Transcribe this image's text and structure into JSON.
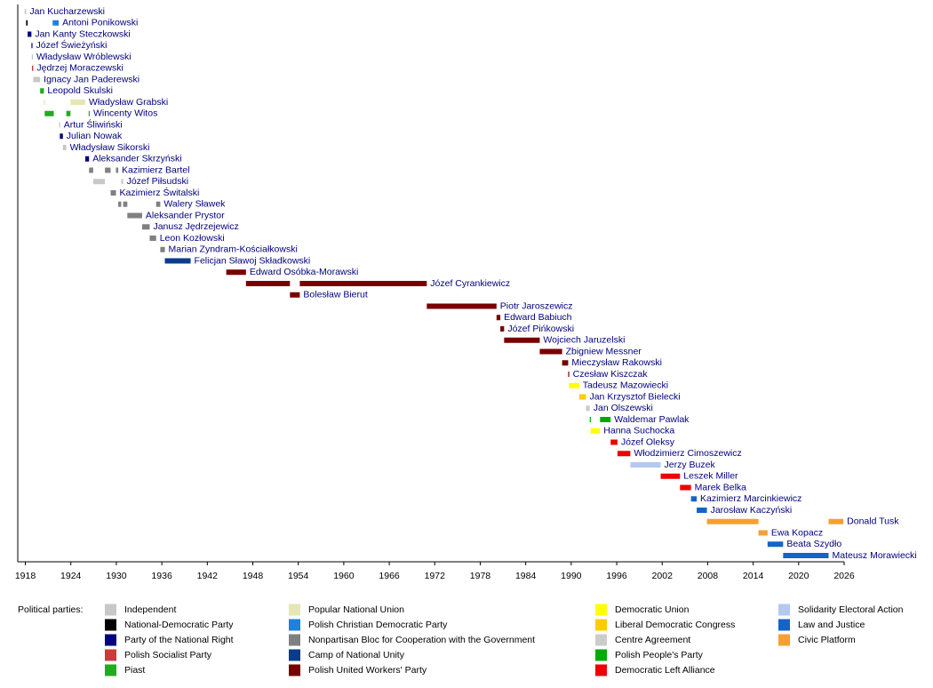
{
  "chart_data": {
    "type": "timeline",
    "xlim": [
      1917,
      2026
    ],
    "xticks": [
      1918,
      1924,
      1930,
      1936,
      1942,
      1948,
      1954,
      1960,
      1966,
      1972,
      1978,
      1984,
      1990,
      1996,
      2002,
      2008,
      2014,
      2020,
      2026
    ],
    "legend_title": "Political parties:",
    "parties": [
      {
        "name": "Independent",
        "color": "#c8c8c8"
      },
      {
        "name": "National-Democratic Party",
        "color": "#000000"
      },
      {
        "name": "Party of the National Right",
        "color": "#00007f"
      },
      {
        "name": "Polish Socialist Party",
        "color": "#c83c3c"
      },
      {
        "name": "Piast",
        "color": "#22aa22"
      },
      {
        "name": "Popular National Union",
        "color": "#e6e6b4"
      },
      {
        "name": "Polish Christian Democratic Party",
        "color": "#1e82dc"
      },
      {
        "name": "Nonpartisan Bloc for Cooperation with the Government",
        "color": "#808080"
      },
      {
        "name": "Camp of National Unity",
        "color": "#0a3c8c"
      },
      {
        "name": "Polish United Workers' Party",
        "color": "#780000"
      },
      {
        "name": "Democratic Union",
        "color": "#ffff00"
      },
      {
        "name": "Liberal Democratic Congress",
        "color": "#ffcc00"
      },
      {
        "name": "Centre Agreement",
        "color": "#cccccc"
      },
      {
        "name": "Polish People's Party",
        "color": "#00aa00"
      },
      {
        "name": "Democratic Left Alliance",
        "color": "#ee0000"
      },
      {
        "name": "Solidarity Electoral Action",
        "color": "#b4c8f0"
      },
      {
        "name": "Law and Justice",
        "color": "#1464c8"
      },
      {
        "name": "Civic Platform",
        "color": "#f5a030"
      }
    ],
    "ministers": [
      {
        "name": "Jan Kucharzewski",
        "terms": [
          {
            "start": 1917.9,
            "end": 1918.1,
            "party": "Independent"
          }
        ]
      },
      {
        "name": "Antoni Ponikowski",
        "terms": [
          {
            "start": 1918.1,
            "end": 1918.3,
            "party": "National-Democratic Party"
          },
          {
            "start": 1921.6,
            "end": 1922.4,
            "party": "Polish Christian Democratic Party"
          }
        ]
      },
      {
        "name": "Jan Kanty Steczkowski",
        "terms": [
          {
            "start": 1918.3,
            "end": 1918.8,
            "party": "Party of the National Right"
          }
        ]
      },
      {
        "name": "Józef Świeżyński",
        "terms": [
          {
            "start": 1918.8,
            "end": 1918.85,
            "party": "Party of the National Right"
          }
        ]
      },
      {
        "name": "Władysław Wróblewski",
        "terms": [
          {
            "start": 1918.85,
            "end": 1918.9,
            "party": "Independent"
          }
        ]
      },
      {
        "name": "Jędrzej Moraczewski",
        "terms": [
          {
            "start": 1918.87,
            "end": 1919.04,
            "party": "Polish Socialist Party"
          }
        ]
      },
      {
        "name": "Ignacy Jan Paderewski",
        "terms": [
          {
            "start": 1919.04,
            "end": 1919.95,
            "party": "Independent"
          }
        ]
      },
      {
        "name": "Leopold Skulski",
        "terms": [
          {
            "start": 1919.95,
            "end": 1920.45,
            "party": "Piast"
          }
        ]
      },
      {
        "name": "Władysław Grabski",
        "terms": [
          {
            "start": 1920.45,
            "end": 1920.55,
            "party": "Popular National Union"
          },
          {
            "start": 1923.95,
            "end": 1925.9,
            "party": "Popular National Union"
          }
        ]
      },
      {
        "name": "Wincenty Witos",
        "terms": [
          {
            "start": 1920.55,
            "end": 1921.75,
            "party": "Piast"
          },
          {
            "start": 1923.4,
            "end": 1923.95,
            "party": "Piast"
          },
          {
            "start": 1926.35,
            "end": 1926.45,
            "party": "Piast"
          }
        ]
      },
      {
        "name": "Artur Śliwiński",
        "terms": [
          {
            "start": 1922.45,
            "end": 1922.55,
            "party": "Independent"
          }
        ]
      },
      {
        "name": "Julian Nowak",
        "terms": [
          {
            "start": 1922.55,
            "end": 1922.95,
            "party": "Party of the National Right"
          }
        ]
      },
      {
        "name": "Władysław Sikorski",
        "terms": [
          {
            "start": 1922.95,
            "end": 1923.4,
            "party": "Independent"
          }
        ]
      },
      {
        "name": "Aleksander Skrzyński",
        "terms": [
          {
            "start": 1925.9,
            "end": 1926.4,
            "party": "Party of the National Right"
          }
        ]
      },
      {
        "name": "Kazimierz Bartel",
        "terms": [
          {
            "start": 1926.4,
            "end": 1926.95,
            "party": "Nonpartisan Bloc for Cooperation with the Government"
          },
          {
            "start": 1928.5,
            "end": 1929.25,
            "party": "Nonpartisan Bloc for Cooperation with the Government"
          },
          {
            "start": 1929.95,
            "end": 1930.25,
            "party": "Nonpartisan Bloc for Cooperation with the Government"
          }
        ]
      },
      {
        "name": "Józef Piłsudski",
        "terms": [
          {
            "start": 1926.95,
            "end": 1928.5,
            "party": "Independent"
          },
          {
            "start": 1930.65,
            "end": 1930.9,
            "party": "Independent"
          }
        ]
      },
      {
        "name": "Kazimierz Świtalski",
        "terms": [
          {
            "start": 1929.25,
            "end": 1929.95,
            "party": "Nonpartisan Bloc for Cooperation with the Government"
          }
        ]
      },
      {
        "name": "Walery Sławek",
        "terms": [
          {
            "start": 1930.25,
            "end": 1930.65,
            "party": "Nonpartisan Bloc for Cooperation with the Government"
          },
          {
            "start": 1930.9,
            "end": 1931.45,
            "party": "Nonpartisan Bloc for Cooperation with the Government"
          },
          {
            "start": 1935.25,
            "end": 1935.8,
            "party": "Nonpartisan Bloc for Cooperation with the Government"
          }
        ]
      },
      {
        "name": "Aleksander Prystor",
        "terms": [
          {
            "start": 1931.45,
            "end": 1933.4,
            "party": "Nonpartisan Bloc for Cooperation with the Government"
          }
        ]
      },
      {
        "name": "Janusz Jędrzejewicz",
        "terms": [
          {
            "start": 1933.4,
            "end": 1934.4,
            "party": "Nonpartisan Bloc for Cooperation with the Government"
          }
        ]
      },
      {
        "name": "Leon Kozłowski",
        "terms": [
          {
            "start": 1934.4,
            "end": 1935.25,
            "party": "Nonpartisan Bloc for Cooperation with the Government"
          }
        ]
      },
      {
        "name": "Marian Zyndram-Kościałkowski",
        "terms": [
          {
            "start": 1935.8,
            "end": 1936.4,
            "party": "Nonpartisan Bloc for Cooperation with the Government"
          }
        ]
      },
      {
        "name": "Felicjan Sławoj Składkowski",
        "terms": [
          {
            "start": 1936.4,
            "end": 1939.8,
            "party": "Camp of National Unity"
          }
        ]
      },
      {
        "name": "Edward Osóbka-Morawski",
        "terms": [
          {
            "start": 1944.5,
            "end": 1947.1,
            "party": "Polish United Workers' Party"
          }
        ]
      },
      {
        "name": "Józef Cyrankiewicz",
        "terms": [
          {
            "start": 1947.1,
            "end": 1952.9,
            "party": "Polish United Workers' Party"
          },
          {
            "start": 1954.2,
            "end": 1970.95,
            "party": "Polish United Workers' Party"
          }
        ]
      },
      {
        "name": "Bolesław Bierut",
        "terms": [
          {
            "start": 1952.9,
            "end": 1954.2,
            "party": "Polish United Workers' Party"
          }
        ]
      },
      {
        "name": "Piotr Jaroszewicz",
        "terms": [
          {
            "start": 1970.95,
            "end": 1980.15,
            "party": "Polish United Workers' Party"
          }
        ]
      },
      {
        "name": "Edward Babiuch",
        "terms": [
          {
            "start": 1980.15,
            "end": 1980.65,
            "party": "Polish United Workers' Party"
          }
        ]
      },
      {
        "name": "Józef Pińkowski",
        "terms": [
          {
            "start": 1980.65,
            "end": 1981.15,
            "party": "Polish United Workers' Party"
          }
        ]
      },
      {
        "name": "Wojciech Jaruzelski",
        "terms": [
          {
            "start": 1981.15,
            "end": 1985.85,
            "party": "Polish United Workers' Party"
          }
        ]
      },
      {
        "name": "Zbigniew Messner",
        "terms": [
          {
            "start": 1985.85,
            "end": 1988.8,
            "party": "Polish United Workers' Party"
          }
        ]
      },
      {
        "name": "Mieczysław Rakowski",
        "terms": [
          {
            "start": 1988.8,
            "end": 1989.6,
            "party": "Polish United Workers' Party"
          }
        ]
      },
      {
        "name": "Czesław Kiszczak",
        "terms": [
          {
            "start": 1989.6,
            "end": 1989.7,
            "party": "Polish United Workers' Party"
          }
        ]
      },
      {
        "name": "Tadeusz Mazowiecki",
        "terms": [
          {
            "start": 1989.7,
            "end": 1991.05,
            "party": "Democratic Union"
          }
        ]
      },
      {
        "name": "Jan Krzysztof Bielecki",
        "terms": [
          {
            "start": 1991.05,
            "end": 1991.95,
            "party": "Liberal Democratic Congress"
          }
        ]
      },
      {
        "name": "Jan Olszewski",
        "terms": [
          {
            "start": 1991.95,
            "end": 1992.45,
            "party": "Centre Agreement"
          }
        ]
      },
      {
        "name": "Waldemar Pawlak",
        "terms": [
          {
            "start": 1992.45,
            "end": 1992.55,
            "party": "Polish People's Party"
          },
          {
            "start": 1993.8,
            "end": 1995.2,
            "party": "Polish People's Party"
          }
        ]
      },
      {
        "name": "Hanna Suchocka",
        "terms": [
          {
            "start": 1992.55,
            "end": 1993.8,
            "party": "Democratic Union"
          }
        ]
      },
      {
        "name": "Józef Oleksy",
        "terms": [
          {
            "start": 1995.2,
            "end": 1996.1,
            "party": "Democratic Left Alliance"
          }
        ]
      },
      {
        "name": "Włodzimierz Cimoszewicz",
        "terms": [
          {
            "start": 1996.1,
            "end": 1997.8,
            "party": "Democratic Left Alliance"
          }
        ]
      },
      {
        "name": "Jerzy Buzek",
        "terms": [
          {
            "start": 1997.8,
            "end": 2001.8,
            "party": "Solidarity Electoral Action"
          }
        ]
      },
      {
        "name": "Leszek Miller",
        "terms": [
          {
            "start": 2001.8,
            "end": 2004.35,
            "party": "Democratic Left Alliance"
          }
        ]
      },
      {
        "name": "Marek Belka",
        "terms": [
          {
            "start": 2004.35,
            "end": 2005.8,
            "party": "Democratic Left Alliance"
          }
        ]
      },
      {
        "name": "Kazimierz Marcinkiewicz",
        "terms": [
          {
            "start": 2005.8,
            "end": 2006.55,
            "party": "Law and Justice"
          }
        ]
      },
      {
        "name": "Jarosław Kaczyński",
        "terms": [
          {
            "start": 2006.55,
            "end": 2007.9,
            "party": "Law and Justice"
          }
        ]
      },
      {
        "name": "Donald Tusk",
        "terms": [
          {
            "start": 2007.9,
            "end": 2014.7,
            "party": "Civic Platform"
          },
          {
            "start": 2023.95,
            "end": 2025.9,
            "party": "Civic Platform"
          }
        ]
      },
      {
        "name": "Ewa Kopacz",
        "terms": [
          {
            "start": 2014.7,
            "end": 2015.9,
            "party": "Civic Platform"
          }
        ]
      },
      {
        "name": "Beata Szydło",
        "terms": [
          {
            "start": 2015.9,
            "end": 2017.95,
            "party": "Law and Justice"
          }
        ]
      },
      {
        "name": "Mateusz Morawiecki",
        "terms": [
          {
            "start": 2017.95,
            "end": 2023.95,
            "party": "Law and Justice"
          }
        ]
      }
    ]
  }
}
